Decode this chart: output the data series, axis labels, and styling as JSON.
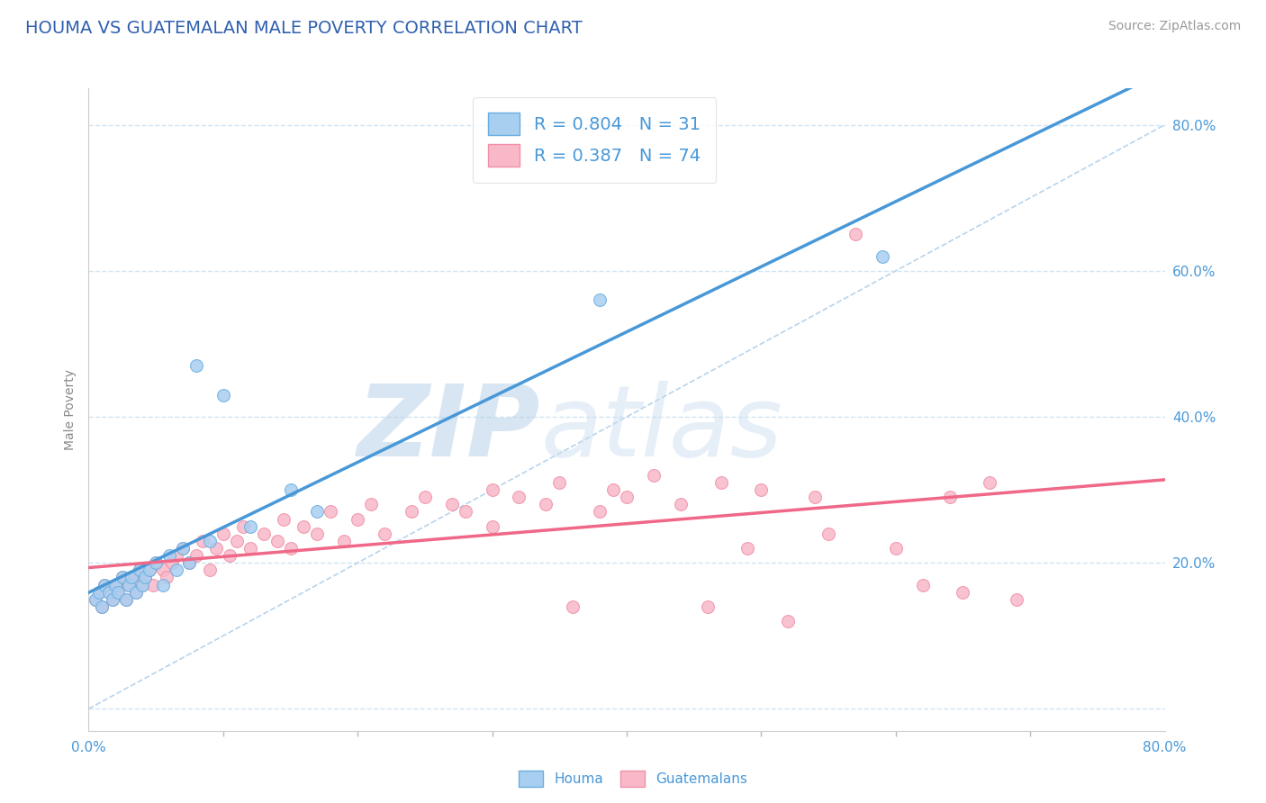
{
  "title": "HOUMA VS GUATEMALAN MALE POVERTY CORRELATION CHART",
  "source": "Source: ZipAtlas.com",
  "ylabel": "Male Poverty",
  "watermark_zip": "ZIP",
  "watermark_atlas": "atlas",
  "xmin": 0.0,
  "xmax": 0.8,
  "ymin": -0.03,
  "ymax": 0.85,
  "legend_r1": "R = 0.804",
  "legend_n1": "N = 31",
  "legend_r2": "R = 0.387",
  "legend_n2": "N = 74",
  "houma_face_color": "#A8CEF0",
  "houma_edge_color": "#6AAEE0",
  "guatemalan_face_color": "#F8B8C8",
  "guatemalan_edge_color": "#F090A8",
  "houma_line_color": "#4898D8",
  "guatemalan_line_color": "#F06888",
  "ref_line_color": "#B8D4EC",
  "grid_color": "#D0E4F4",
  "title_color": "#3060B0",
  "tick_color": "#4898D8",
  "houma_scatter_x": [
    0.005,
    0.008,
    0.01,
    0.012,
    0.015,
    0.018,
    0.02,
    0.022,
    0.025,
    0.028,
    0.03,
    0.032,
    0.035,
    0.038,
    0.04,
    0.042,
    0.045,
    0.05,
    0.055,
    0.06,
    0.065,
    0.07,
    0.075,
    0.08,
    0.09,
    0.1,
    0.12,
    0.15,
    0.17,
    0.38,
    0.59
  ],
  "houma_scatter_y": [
    0.15,
    0.16,
    0.14,
    0.17,
    0.16,
    0.15,
    0.17,
    0.16,
    0.18,
    0.15,
    0.17,
    0.18,
    0.16,
    0.19,
    0.17,
    0.18,
    0.19,
    0.2,
    0.17,
    0.21,
    0.19,
    0.22,
    0.2,
    0.47,
    0.23,
    0.43,
    0.25,
    0.3,
    0.27,
    0.56,
    0.62
  ],
  "guatemalan_scatter_x": [
    0.005,
    0.008,
    0.01,
    0.012,
    0.015,
    0.018,
    0.02,
    0.022,
    0.025,
    0.028,
    0.03,
    0.032,
    0.035,
    0.038,
    0.04,
    0.042,
    0.045,
    0.048,
    0.05,
    0.055,
    0.058,
    0.062,
    0.065,
    0.07,
    0.075,
    0.08,
    0.085,
    0.09,
    0.095,
    0.1,
    0.105,
    0.11,
    0.115,
    0.12,
    0.13,
    0.14,
    0.145,
    0.15,
    0.16,
    0.17,
    0.18,
    0.19,
    0.2,
    0.21,
    0.22,
    0.24,
    0.25,
    0.27,
    0.28,
    0.3,
    0.3,
    0.32,
    0.34,
    0.35,
    0.36,
    0.38,
    0.39,
    0.4,
    0.42,
    0.44,
    0.46,
    0.47,
    0.49,
    0.5,
    0.52,
    0.54,
    0.55,
    0.57,
    0.6,
    0.62,
    0.64,
    0.65,
    0.67,
    0.69
  ],
  "guatemalan_scatter_y": [
    0.15,
    0.16,
    0.14,
    0.17,
    0.16,
    0.15,
    0.17,
    0.16,
    0.18,
    0.15,
    0.17,
    0.18,
    0.16,
    0.19,
    0.17,
    0.18,
    0.19,
    0.17,
    0.2,
    0.19,
    0.18,
    0.2,
    0.21,
    0.22,
    0.2,
    0.21,
    0.23,
    0.19,
    0.22,
    0.24,
    0.21,
    0.23,
    0.25,
    0.22,
    0.24,
    0.23,
    0.26,
    0.22,
    0.25,
    0.24,
    0.27,
    0.23,
    0.26,
    0.28,
    0.24,
    0.27,
    0.29,
    0.28,
    0.27,
    0.3,
    0.25,
    0.29,
    0.28,
    0.31,
    0.14,
    0.27,
    0.3,
    0.29,
    0.32,
    0.28,
    0.14,
    0.31,
    0.22,
    0.3,
    0.12,
    0.29,
    0.24,
    0.65,
    0.22,
    0.17,
    0.29,
    0.16,
    0.31,
    0.15
  ],
  "background_color": "#FFFFFF",
  "title_fontsize": 14,
  "source_fontsize": 10
}
